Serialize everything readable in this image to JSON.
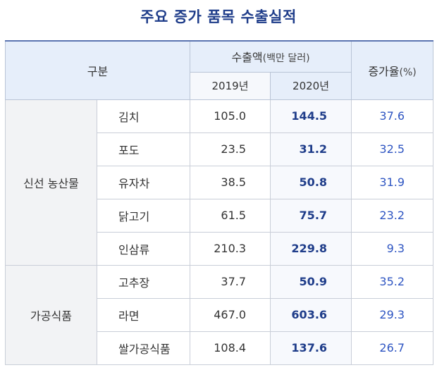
{
  "title": "주요 증가 품목 수출실적",
  "header": {
    "category": "구분",
    "export_main": "수출액",
    "export_unit": "(백만 달러)",
    "rate_main": "증가율",
    "rate_unit": "(%)",
    "year_2019": "2019년",
    "year_2020": "2020년"
  },
  "groups": [
    {
      "name": "신선 농산물",
      "rows": [
        {
          "item": "김치",
          "v2019": "105.0",
          "v2020": "144.5",
          "rate": "37.6"
        },
        {
          "item": "포도",
          "v2019": "23.5",
          "v2020": "31.2",
          "rate": "32.5"
        },
        {
          "item": "유자차",
          "v2019": "38.5",
          "v2020": "50.8",
          "rate": "31.9"
        },
        {
          "item": "닭고기",
          "v2019": "61.5",
          "v2020": "75.7",
          "rate": "23.2"
        },
        {
          "item": "인삼류",
          "v2019": "210.3",
          "v2020": "229.8",
          "rate": "9.3"
        }
      ]
    },
    {
      "name": "가공식품",
      "rows": [
        {
          "item": "고추장",
          "v2019": "37.7",
          "v2020": "50.9",
          "rate": "35.2"
        },
        {
          "item": "라면",
          "v2019": "467.0",
          "v2020": "603.6",
          "rate": "29.3"
        },
        {
          "item": "쌀가공식품",
          "v2019": "108.4",
          "v2020": "137.6",
          "rate": "26.7"
        }
      ]
    }
  ],
  "colors": {
    "title": "#1f3d8a",
    "header_bg": "#e6eefa",
    "value_2020": "#1f3d8a",
    "rate": "#2e55c2",
    "category_bg": "#f2f3f5"
  }
}
